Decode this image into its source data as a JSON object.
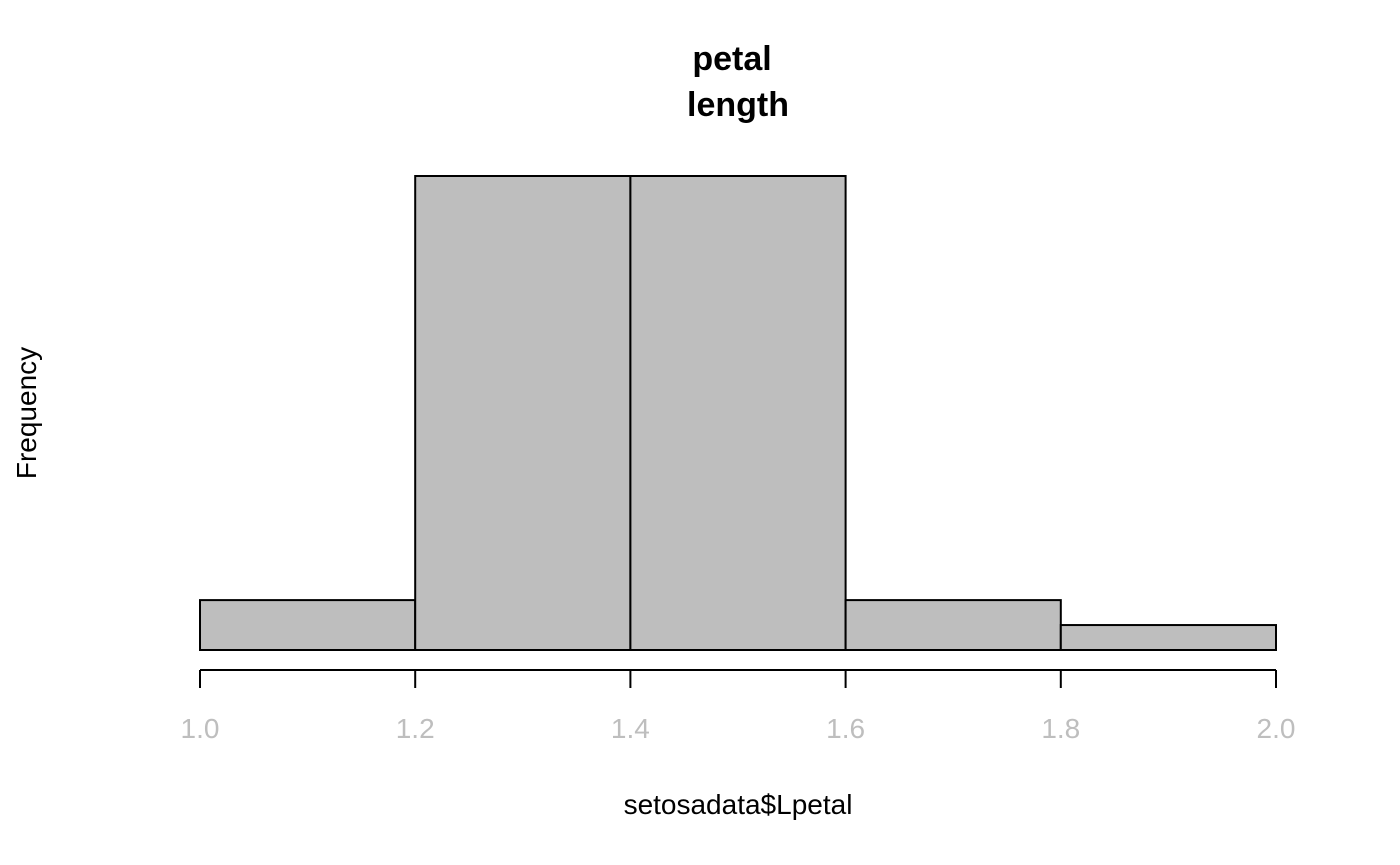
{
  "chart_data": {
    "type": "bar",
    "title_lines": [
      "petal",
      "length"
    ],
    "xlabel": "setosadata$Lpetal",
    "ylabel": "Frequency",
    "bins": [
      {
        "start": 1.0,
        "end": 1.2,
        "value": 2
      },
      {
        "start": 1.2,
        "end": 1.4,
        "value": 19
      },
      {
        "start": 1.4,
        "end": 1.6,
        "value": 19
      },
      {
        "start": 1.6,
        "end": 1.8,
        "value": 2
      },
      {
        "start": 1.8,
        "end": 2.0,
        "value": 1
      }
    ],
    "x_ticks": [
      "1.0",
      "1.2",
      "1.4",
      "1.6",
      "1.8",
      "2.0"
    ],
    "x_tick_values": [
      1.0,
      1.2,
      1.4,
      1.6,
      1.8,
      2.0
    ],
    "xlim": [
      1.0,
      2.0
    ],
    "ylim": [
      0,
      19
    ],
    "y_axis_visible": false,
    "grid": false,
    "bar_fill": "#bebebe",
    "bar_stroke": "#000000",
    "tick_label_color": "#bebebe"
  }
}
